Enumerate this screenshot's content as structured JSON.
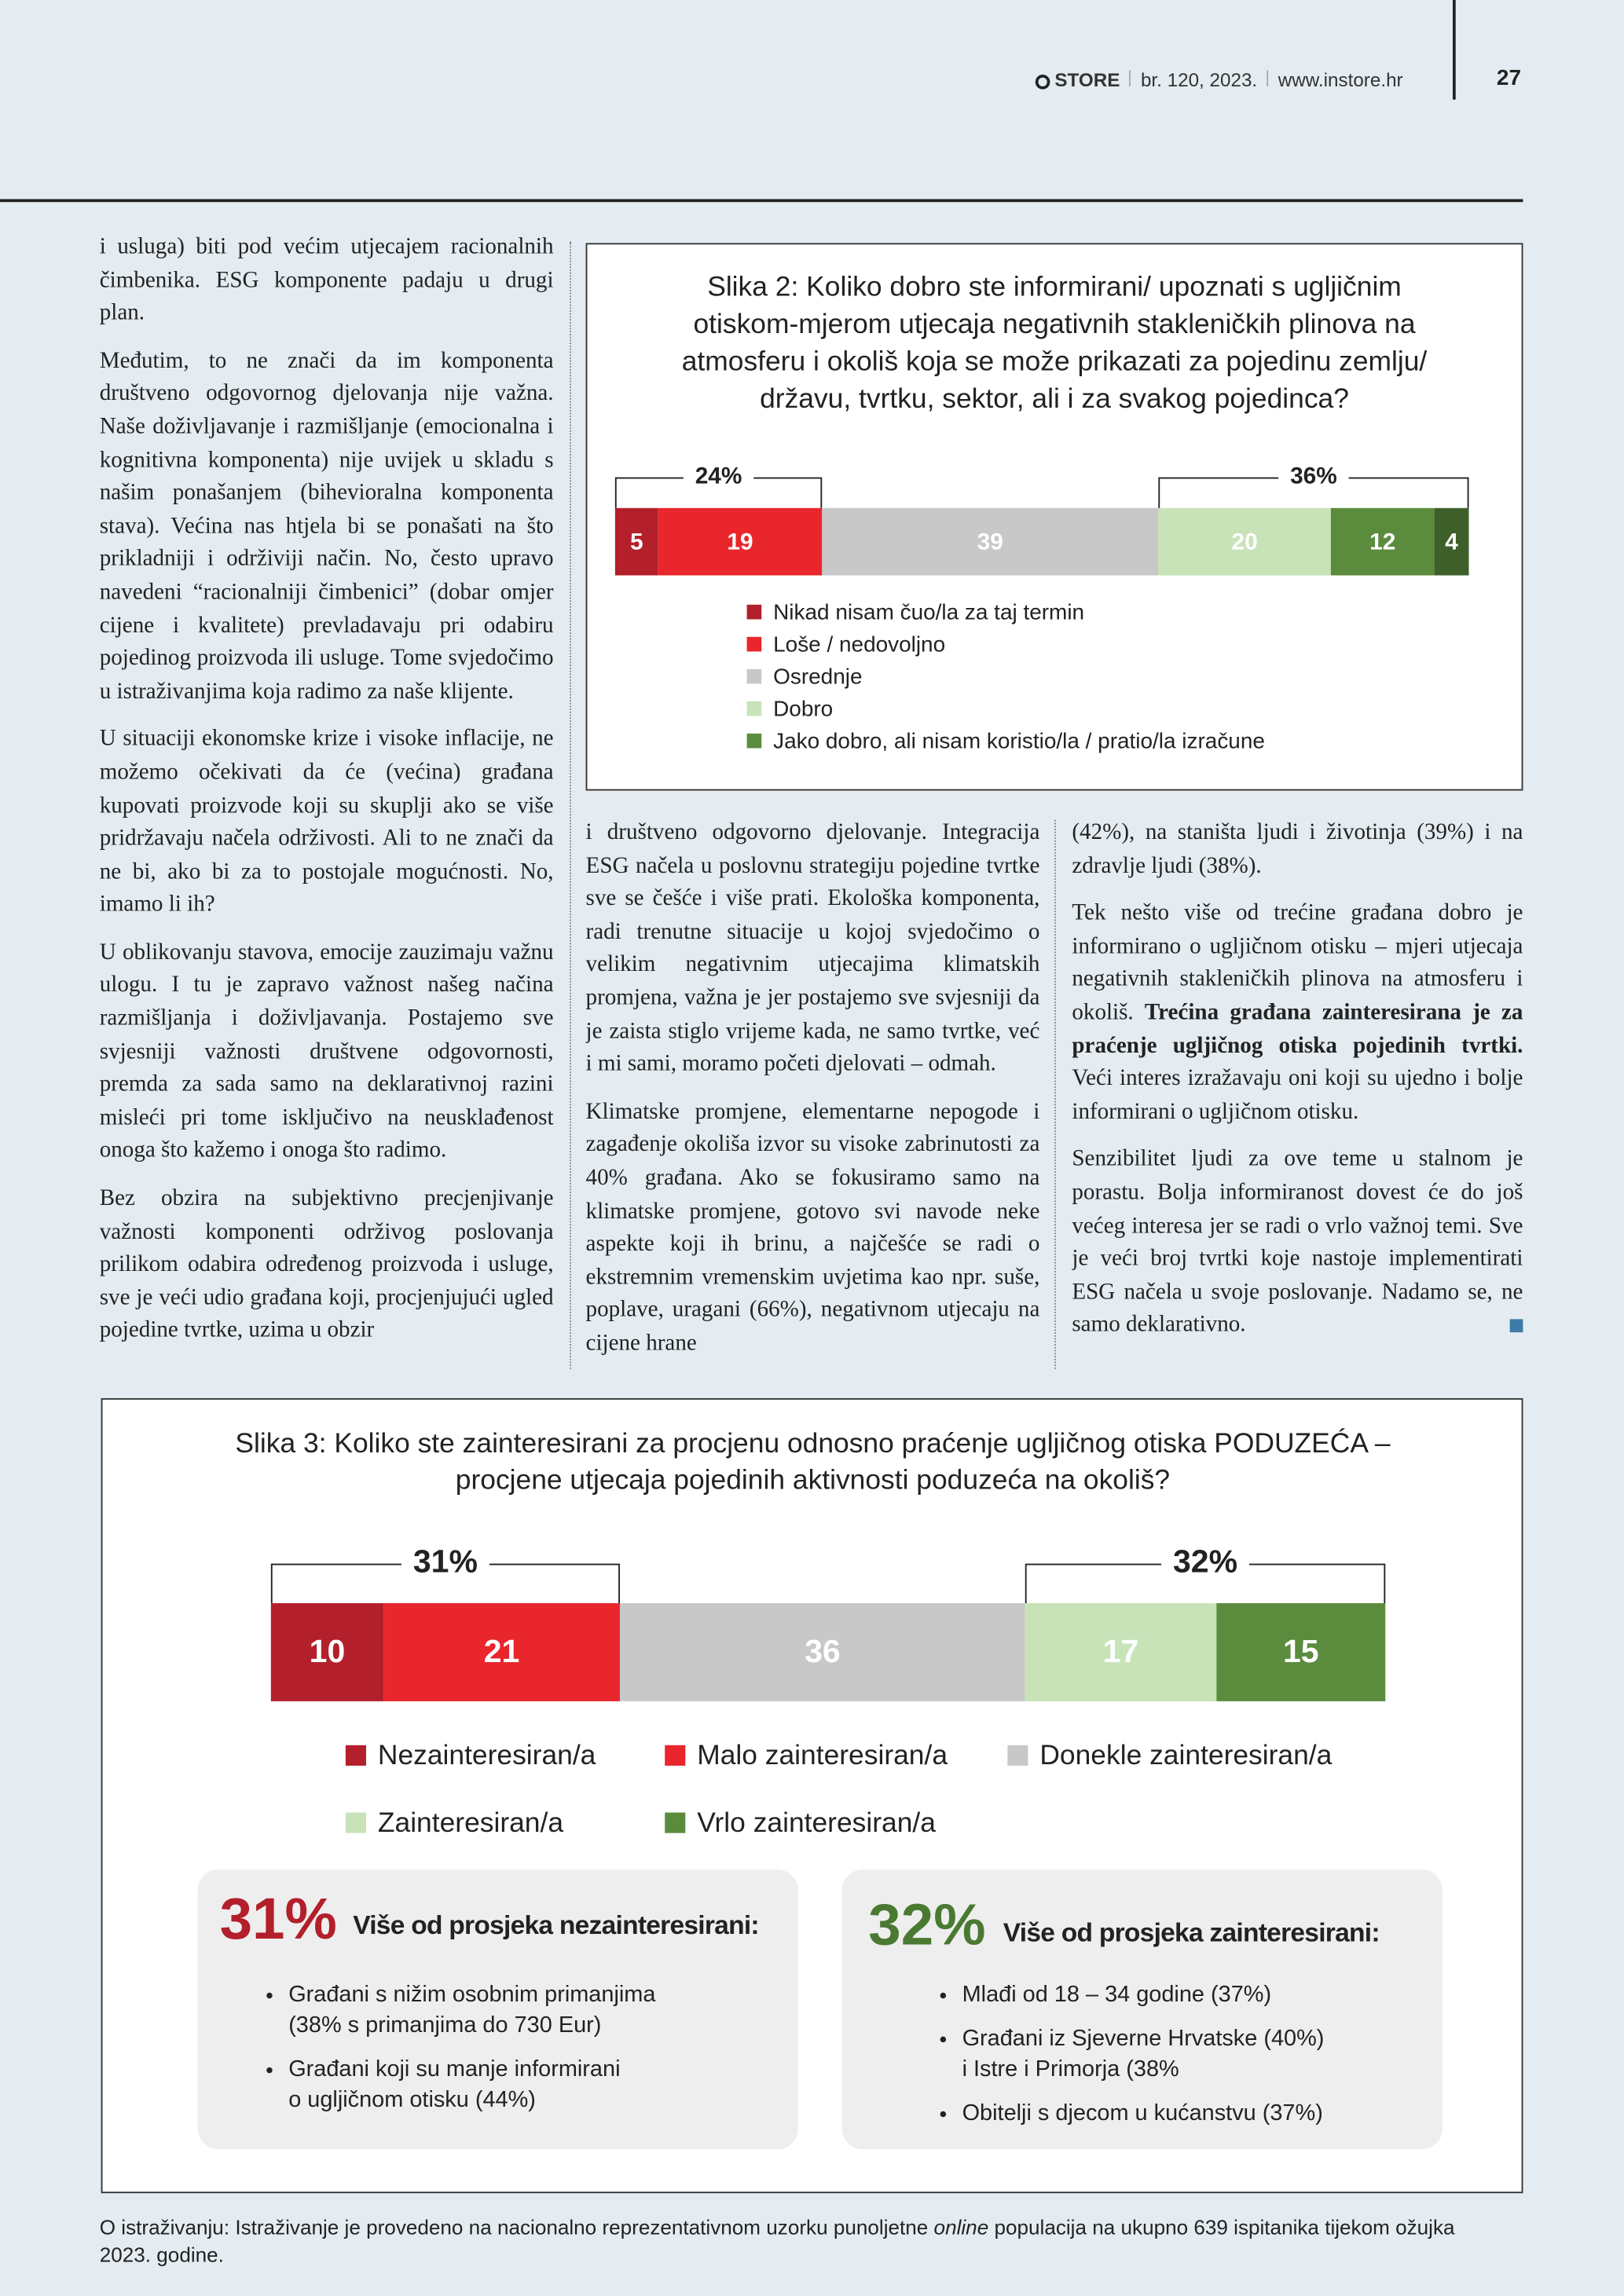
{
  "header": {
    "brand": "STORE",
    "issue": "br. 120, 2023.",
    "website": "www.instore.hr",
    "page_number": "27"
  },
  "article": {
    "columns": [
      [
        "i usluga) biti pod većim utjecajem racionalnih čimbenika. ESG komponente padaju u drugi plan.",
        "Međutim, to ne znači da im komponenta društveno odgovornog djelovanja nije važna. Naše doživljavanje i razmišljanje (emocionalna i kognitivna komponenta) nije uvijek u skladu s našim ponašanjem (bihevioralna komponenta stava). Većina nas htjela bi se ponašati na što prikladniji i održiviji način. No, često upravo navedeni “racionalniji čimbenici” (dobar omjer cijene i kvalitete) prevladavaju pri odabiru pojedinog proizvoda ili usluge. Tome svjedočimo u istraživanjima koja radimo za naše klijente.",
        "U situaciji ekonomske krize i visoke inflacije, ne možemo očekivati da će (većina) građana kupovati proizvode koji su skuplji ako se više pridržavaju načela održivosti. Ali to ne znači da ne bi, ako bi za to postojale mogućnosti. No, imamo li ih?",
        "U oblikovanju stavova, emocije zauzimaju važnu ulogu. I tu je zapravo važnost našeg načina razmišljanja i doživljavanja. Postajemo sve svjesniji važnosti društvene odgovornosti, premda za sada samo na deklarativnoj razini misleći pri tome isključivo na neusklađenost onoga što kažemo i onoga što radimo.",
        "Bez obzira na subjektivno precjenjivanje važnosti komponenti održivog poslovanja prilikom odabira određenog proizvoda i usluge, sve je veći udio građana koji, procjenjujući ugled pojedine tvrtke, uzima u obzir"
      ],
      [
        "i društveno odgovorno djelovanje. Integracija ESG načela u poslovnu strategiju pojedine tvrtke sve se češće i više prati. Ekološka komponenta, radi trenutne situacije u kojoj svjedočimo o velikim negativnim utjecajima klimatskih promjena, važna je jer postajemo sve svjesniji da je zaista stiglo vrijeme kada, ne samo tvrtke, već i mi sami, moramo početi djelovati – odmah.",
        "Klimatske promjene, elementarne nepogode i zagađenje okoliša izvor su visoke zabrinutosti za 40% građana. Ako se fokusiramo samo na klimatske promjene, gotovo svi navode neke aspekte koji ih brinu, a najčešće se radi o ekstremnim vremenskim uvjetima kao npr. suše, poplave, uragani (66%), negativnom utjecaju na cijene hrane"
      ],
      [
        "(42%), na staništa ljudi i životinja (39%) i na zdravlje ljudi (38%).",
        {
          "text": "Tek nešto više od trećine građana dobro je informirano o ugljičnom otisku – mjeri utjecaja negativnih stakleničkih plinova na atmosferu i okoliš. ",
          "bold": "Trećina građana zainteresirana je za praćenje ugljičnog otiska pojedinih tvrtki.",
          "after": " Veći interes izražavaju oni koji su ujedno i bolje informirani o ugljičnom otisku."
        },
        "Senzibilitet ljudi za ove teme u stalnom je porastu. Bolja informiranost dovest će do još većeg interesa jer se radi o vrlo važnoj temi. Sve je veći broj tvrtki koje nastoje implementirati ESG načela u svoje poslovanje. Nadamo se, ne samo deklarativno."
      ]
    ]
  },
  "chart_data": [
    {
      "type": "bar",
      "stacked": true,
      "orientation": "horizontal",
      "title": [
        "Slika 2: Koliko dobro ste informirani/ upoznati s ugljičnim",
        "otiskom-mjerom utjecaja negativnih stakleničkih plinova na",
        "atmosferu i okoliš koja se može prikazati za pojedinu zemlju/",
        "državu, tvrtku, sektor, ali i za svakog pojedinca?"
      ],
      "series": [
        {
          "name": "Nikad nisam čuo/la za taj termin",
          "color": "#b31f2a",
          "values": [
            5
          ]
        },
        {
          "name": "Loše / nedovoljno",
          "color": "#e8262c",
          "values": [
            19
          ]
        },
        {
          "name": "Osrednje",
          "color": "#c8c8c8",
          "values": [
            39
          ]
        },
        {
          "name": "Dobro",
          "color": "#c8e3b8",
          "values": [
            20
          ]
        },
        {
          "name": "Jako dobro, ali nisam koristio/la / pratio/la izračune",
          "color": "#5b8c3e",
          "values": [
            12
          ]
        },
        {
          "name": null,
          "color": "#3e5f2a",
          "values": [
            4
          ]
        }
      ],
      "group_labels": [
        {
          "value": 24,
          "label": "24%",
          "side": "left"
        },
        {
          "value": 36,
          "label": "36%",
          "side": "right"
        }
      ]
    },
    {
      "type": "bar",
      "stacked": true,
      "orientation": "horizontal",
      "title": [
        "Slika 3: Koliko ste zainteresirani za procjenu odnosno praćenje ugljičnog otiska PODUZEĆA –",
        "procjene utjecaja pojedinih aktivnosti poduzeća na okoliš?"
      ],
      "series": [
        {
          "name": "Nezainteresiran/a",
          "color": "#b31f2a",
          "values": [
            10
          ]
        },
        {
          "name": "Malo zainteresiran/a",
          "color": "#e8262c",
          "values": [
            21
          ]
        },
        {
          "name": "Donekle zainteresiran/a",
          "color": "#c8c8c8",
          "values": [
            36
          ]
        },
        {
          "name": "Zainteresiran/a",
          "color": "#c8e3b8",
          "values": [
            17
          ]
        },
        {
          "name": "Vrlo zainteresiran/a",
          "color": "#5b8c3e",
          "values": [
            15
          ]
        }
      ],
      "group_labels": [
        {
          "value": 31,
          "label": "31%",
          "side": "left"
        },
        {
          "value": 32,
          "label": "32%",
          "side": "right"
        }
      ]
    }
  ],
  "info_boxes": [
    {
      "figure": "31%",
      "color": "#b31f2a",
      "heading": "Više od prosjeka nezainteresirani:",
      "items": [
        [
          "Građani s nižim osobnim primanjima",
          "(38% s primanjima do 730 Eur)"
        ],
        [
          "Građani koji su manje informirani",
          "o ugljičnom otisku (44%)"
        ]
      ]
    },
    {
      "figure": "32%",
      "color": "#4a7a32",
      "heading": "Više od prosjeka zainteresirani:",
      "items": [
        [
          "Mlađi od 18 – 34 godine (37%)"
        ],
        [
          "Građani iz Sjeverne Hrvatske (40%)",
          "i Istre i Primorja (38%"
        ],
        [
          "Obitelji s djecom u kućanstvu (37%)"
        ]
      ]
    }
  ],
  "footnote": {
    "before": "O istraživanju: Istraživanje je provedeno na nacionalno reprezentativnom uzorku punoljetne ",
    "italic": "online",
    "after": " populacija na ukupno 639 ispitanika tijekom ožujka 2023. godine."
  }
}
